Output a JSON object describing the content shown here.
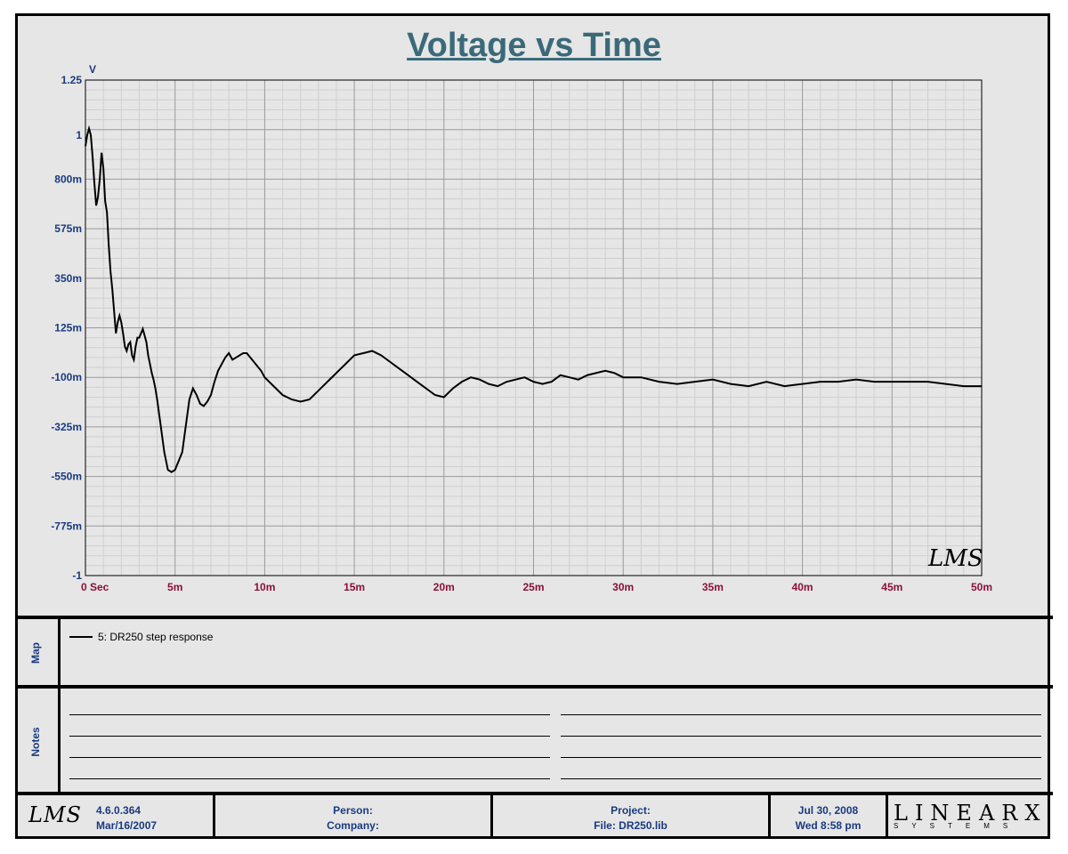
{
  "chart_data": {
    "type": "line",
    "title": "Voltage vs Time",
    "ylabel": "V",
    "xlabel": "",
    "xlim": [
      0,
      0.05
    ],
    "ylim": [
      -1,
      1.25
    ],
    "x_ticks": [
      {
        "value": 0,
        "label": "0  Sec"
      },
      {
        "value": 0.005,
        "label": "5m"
      },
      {
        "value": 0.01,
        "label": "10m"
      },
      {
        "value": 0.015,
        "label": "15m"
      },
      {
        "value": 0.02,
        "label": "20m"
      },
      {
        "value": 0.025,
        "label": "25m"
      },
      {
        "value": 0.03,
        "label": "30m"
      },
      {
        "value": 0.035,
        "label": "35m"
      },
      {
        "value": 0.04,
        "label": "40m"
      },
      {
        "value": 0.045,
        "label": "45m"
      },
      {
        "value": 0.05,
        "label": "50m"
      }
    ],
    "y_ticks": [
      {
        "value": 1.25,
        "label": "1.25"
      },
      {
        "value": 1.0,
        "label": "1"
      },
      {
        "value": 0.8,
        "label": "800m"
      },
      {
        "value": 0.575,
        "label": "575m"
      },
      {
        "value": 0.35,
        "label": "350m"
      },
      {
        "value": 0.125,
        "label": "125m"
      },
      {
        "value": -0.1,
        "label": "-100m"
      },
      {
        "value": -0.325,
        "label": "-325m"
      },
      {
        "value": -0.55,
        "label": "-550m"
      },
      {
        "value": -0.775,
        "label": "-775m"
      },
      {
        "value": -1.0,
        "label": "-1"
      }
    ],
    "grid": true,
    "series": [
      {
        "name": "5: DR250 step response",
        "color": "#000000",
        "x": [
          0,
          0.0001,
          0.0002,
          0.0003,
          0.0004,
          0.0005,
          0.0006,
          0.0007,
          0.0008,
          0.0009,
          0.001,
          0.0011,
          0.0012,
          0.0013,
          0.0014,
          0.0015,
          0.0016,
          0.0017,
          0.0018,
          0.0019,
          0.002,
          0.0021,
          0.0022,
          0.0023,
          0.0024,
          0.0025,
          0.0026,
          0.0027,
          0.0028,
          0.0029,
          0.003,
          0.0031,
          0.0032,
          0.0033,
          0.0034,
          0.0035,
          0.0036,
          0.0037,
          0.0038,
          0.0039,
          0.004,
          0.0042,
          0.0044,
          0.0046,
          0.0048,
          0.005,
          0.0052,
          0.0054,
          0.0056,
          0.0058,
          0.006,
          0.0062,
          0.0064,
          0.0066,
          0.0068,
          0.007,
          0.0072,
          0.0074,
          0.0076,
          0.0078,
          0.008,
          0.0082,
          0.0084,
          0.0086,
          0.0088,
          0.009,
          0.0092,
          0.0094,
          0.0096,
          0.0098,
          0.01,
          0.0105,
          0.011,
          0.0115,
          0.012,
          0.0125,
          0.013,
          0.0135,
          0.014,
          0.0145,
          0.015,
          0.0155,
          0.016,
          0.0165,
          0.017,
          0.0175,
          0.018,
          0.0185,
          0.019,
          0.0195,
          0.02,
          0.0205,
          0.021,
          0.0215,
          0.022,
          0.0225,
          0.023,
          0.0235,
          0.024,
          0.0245,
          0.025,
          0.0255,
          0.026,
          0.0265,
          0.027,
          0.0275,
          0.028,
          0.0285,
          0.029,
          0.0295,
          0.03,
          0.031,
          0.032,
          0.033,
          0.034,
          0.035,
          0.036,
          0.037,
          0.038,
          0.039,
          0.04,
          0.041,
          0.042,
          0.043,
          0.044,
          0.045,
          0.046,
          0.047,
          0.048,
          0.049,
          0.05
        ],
        "y": [
          0.95,
          1.0,
          1.03,
          1.0,
          0.9,
          0.78,
          0.68,
          0.72,
          0.8,
          0.92,
          0.85,
          0.7,
          0.65,
          0.5,
          0.38,
          0.3,
          0.2,
          0.1,
          0.15,
          0.18,
          0.15,
          0.1,
          0.04,
          0.02,
          0.05,
          0.06,
          0.0,
          -0.02,
          0.04,
          0.08,
          0.08,
          0.1,
          0.12,
          0.09,
          0.06,
          0.0,
          -0.04,
          -0.08,
          -0.11,
          -0.15,
          -0.2,
          -0.32,
          -0.44,
          -0.52,
          -0.53,
          -0.52,
          -0.48,
          -0.44,
          -0.32,
          -0.2,
          -0.15,
          -0.18,
          -0.22,
          -0.23,
          -0.21,
          -0.18,
          -0.12,
          -0.07,
          -0.04,
          -0.01,
          0.01,
          -0.02,
          -0.01,
          0.0,
          0.01,
          0.01,
          -0.01,
          -0.03,
          -0.05,
          -0.07,
          -0.1,
          -0.14,
          -0.18,
          -0.2,
          -0.21,
          -0.2,
          -0.16,
          -0.12,
          -0.08,
          -0.04,
          0.0,
          0.01,
          0.02,
          0.0,
          -0.03,
          -0.06,
          -0.09,
          -0.12,
          -0.15,
          -0.18,
          -0.19,
          -0.15,
          -0.12,
          -0.1,
          -0.11,
          -0.13,
          -0.14,
          -0.12,
          -0.11,
          -0.1,
          -0.12,
          -0.13,
          -0.12,
          -0.09,
          -0.1,
          -0.11,
          -0.09,
          -0.08,
          -0.07,
          -0.08,
          -0.1,
          -0.1,
          -0.12,
          -0.13,
          -0.12,
          -0.11,
          -0.13,
          -0.14,
          -0.12,
          -0.14,
          -0.13,
          -0.12,
          -0.12,
          -0.11,
          -0.12,
          -0.12,
          -0.12,
          -0.12,
          -0.13,
          -0.14,
          -0.14
        ]
      }
    ]
  },
  "map": {
    "label": "Map",
    "legend_text": "5: DR250 step response"
  },
  "notes": {
    "label": "Notes"
  },
  "footer": {
    "logo_text": "LMS",
    "version": "4.6.0.364",
    "version_date": "Mar/16/2007",
    "person_label": "Person:",
    "company_label": "Company:",
    "project_label": "Project:",
    "file_label": "File: DR250.lib",
    "date": "Jul 30, 2008",
    "day_time": "Wed  8:58 pm",
    "brand_big": "LINEARX",
    "brand_small": "SYSTEMS"
  },
  "plot_logo": "LMS"
}
